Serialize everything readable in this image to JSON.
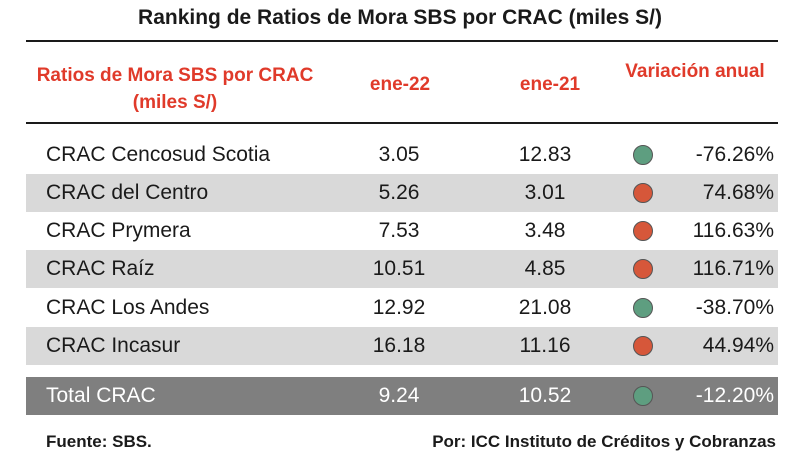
{
  "title": "Ranking de Ratios de Mora SBS por CRAC (miles S/)",
  "header": {
    "col_name": "Ratios de Mora SBS por CRAC (miles S/)",
    "col_period1": "ene-22",
    "col_period2": "ene-21",
    "col_change": "Variación anual"
  },
  "rows": [
    {
      "name": "CRAC Cencosud Scotia",
      "v1": "3.05",
      "v2": "12.83",
      "indicator": "green",
      "change": "-76.26%"
    },
    {
      "name": "CRAC del Centro",
      "v1": "5.26",
      "v2": "3.01",
      "indicator": "red",
      "change": "74.68%"
    },
    {
      "name": "CRAC Prymera",
      "v1": "7.53",
      "v2": "3.48",
      "indicator": "red",
      "change": "116.63%"
    },
    {
      "name": "CRAC Raíz",
      "v1": "10.51",
      "v2": "4.85",
      "indicator": "red",
      "change": "116.71%"
    },
    {
      "name": "CRAC Los Andes",
      "v1": "12.92",
      "v2": "21.08",
      "indicator": "green",
      "change": "-38.70%"
    },
    {
      "name": "CRAC Incasur",
      "v1": "16.18",
      "v2": "11.16",
      "indicator": "red",
      "change": "44.94%"
    }
  ],
  "total": {
    "name": "Total CRAC",
    "v1": "9.24",
    "v2": "10.52",
    "indicator": "green",
    "change": "-12.20%"
  },
  "footer": {
    "source": "Fuente: SBS.",
    "author": "Por: ICC Instituto de Créditos y Cobranzas"
  },
  "colors": {
    "accent_header": "#e03a2a",
    "indicator_green": "#5e9e80",
    "indicator_red": "#d6573a",
    "row_shade": "#d9d9d9",
    "total_row": "#7f7f7f"
  }
}
